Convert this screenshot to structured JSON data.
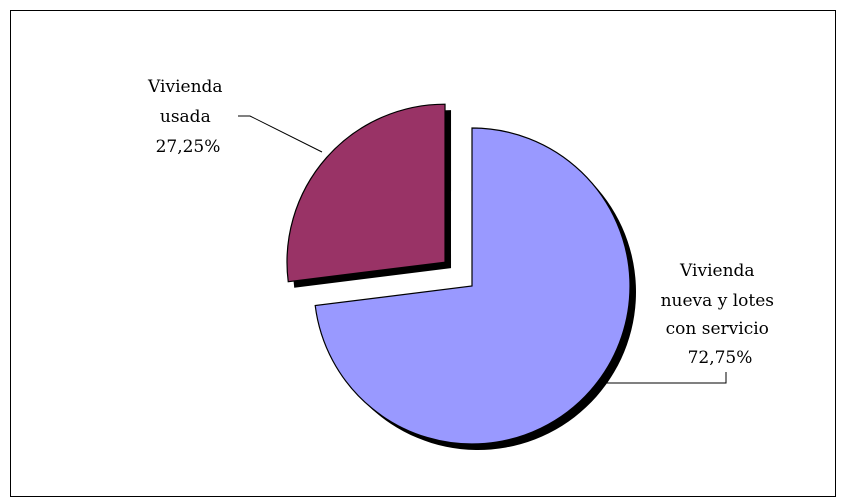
{
  "chart_data": {
    "type": "pie",
    "exploded": true,
    "shadow": true,
    "slices": [
      {
        "label_lines": [
          "Vivienda",
          "usada"
        ],
        "value": 27.25,
        "value_label": "27,25%",
        "color": "#993366"
      },
      {
        "label_lines": [
          "Vivienda",
          "nueva y lotes",
          "con servicio"
        ],
        "value": 72.75,
        "value_label": "72,75%",
        "color": "#9999FF"
      }
    ]
  }
}
